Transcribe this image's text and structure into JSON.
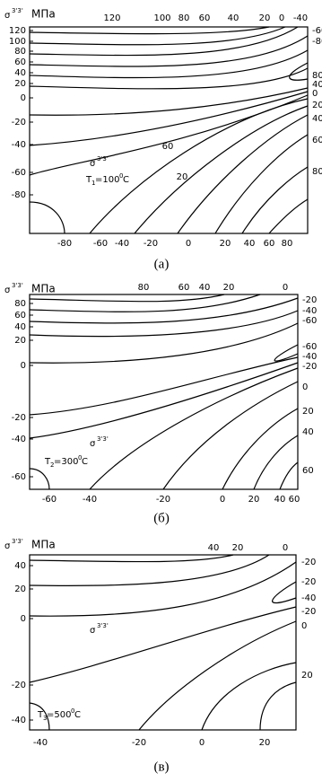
{
  "panels": [
    {
      "y_label": {
        "symbol": "σ",
        "sup": "3'3'",
        "unit": "МПа"
      },
      "left_ticks": [
        120,
        100,
        80,
        60,
        40,
        20,
        0,
        -20,
        -40,
        -60,
        -80
      ],
      "top_labels": [
        120,
        100,
        80,
        60,
        40,
        20,
        0,
        -40
      ],
      "right_labels": [
        -60,
        -80,
        80,
        40,
        0,
        20,
        40,
        60,
        80
      ],
      "bottom_ticks": [
        -80,
        -60,
        -40,
        -20,
        0,
        20,
        40,
        60,
        80
      ],
      "inner_labels": [
        60,
        20
      ],
      "stress_label": {
        "symbol": "σ",
        "sup": "3'3'"
      },
      "temperature": {
        "t": "T",
        "sub": "1",
        "eq": "=100",
        "deg": "0",
        "unit": "C"
      },
      "caption": "(а)"
    },
    {
      "y_label": {
        "symbol": "σ",
        "sup": "3'3'",
        "unit": "МПа"
      },
      "left_ticks": [
        80,
        60,
        40,
        20,
        0,
        -20,
        -40,
        -60
      ],
      "top_labels": [
        80,
        60,
        40,
        20,
        0
      ],
      "right_labels": [
        -20,
        -40,
        -60,
        -60,
        -40,
        -20,
        0,
        20,
        40,
        60
      ],
      "bottom_ticks": [
        -60,
        -40,
        -20,
        0,
        20,
        40,
        60
      ],
      "inner_labels": [],
      "stress_label": {
        "symbol": "σ",
        "sup": "3'3'"
      },
      "temperature": {
        "t": "T",
        "sub": "2",
        "eq": "=300",
        "deg": "0",
        "unit": "C"
      },
      "caption": "(б)"
    },
    {
      "y_label": {
        "symbol": "σ",
        "sup": "3'3'",
        "unit": "МПа"
      },
      "left_ticks": [
        40,
        20,
        0,
        -20,
        -40
      ],
      "top_labels": [
        40,
        20,
        0
      ],
      "right_labels": [
        -20,
        -20,
        -40,
        -20,
        0,
        20
      ],
      "bottom_ticks": [
        -40,
        -20,
        0,
        20
      ],
      "inner_labels": [],
      "stress_label": {
        "symbol": "σ",
        "sup": "3'3'"
      },
      "temperature": {
        "t": "T",
        "sub": "3",
        "eq": "=500",
        "deg": "0",
        "unit": "C"
      },
      "caption": "(в)"
    }
  ]
}
